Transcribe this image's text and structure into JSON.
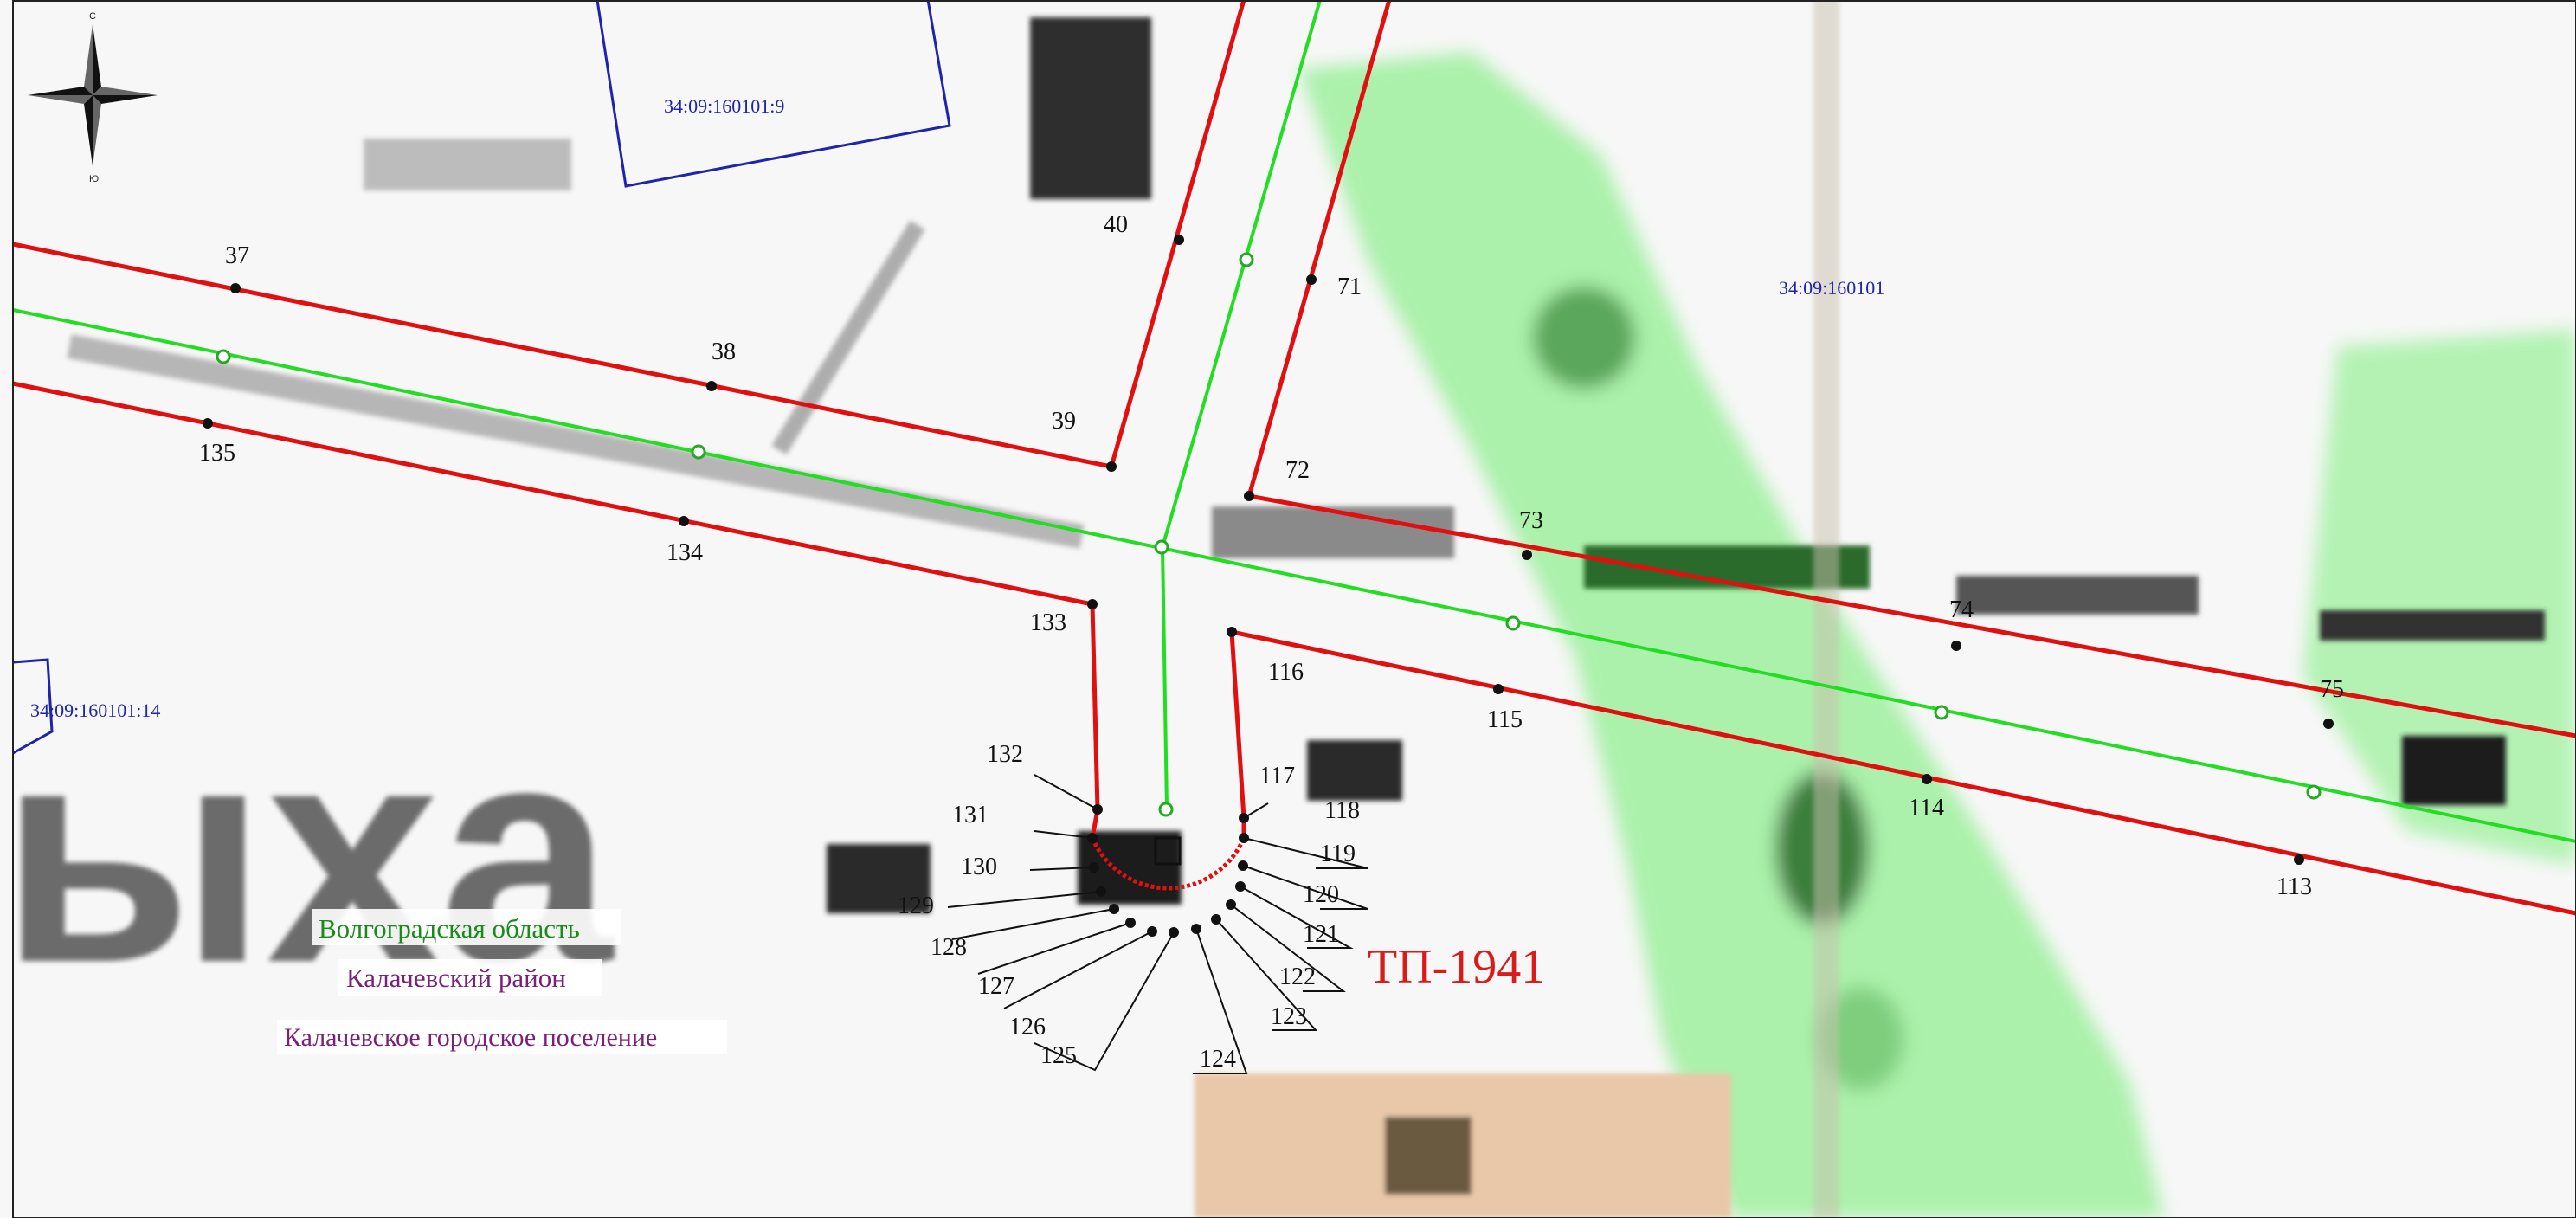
{
  "compass": {
    "north": "С",
    "south": "Ю"
  },
  "parcels": {
    "parcel_9": "34:09:160101:9",
    "quarter": "34:09:160101",
    "parcel_14": "34:09:160101:14"
  },
  "admin_labels": {
    "region": "Волгоградская область",
    "district": "Калачевский район",
    "settlement": "Калачевское городское поселение"
  },
  "object_label": "ТП-1941",
  "point_numbers": {
    "p37": "37",
    "p38": "38",
    "p39": "39",
    "p40": "40",
    "p71": "71",
    "p72": "72",
    "p73": "73",
    "p74": "74",
    "p75": "75",
    "p113": "113",
    "p114": "114",
    "p115": "115",
    "p116": "116",
    "p117": "117",
    "p118": "118",
    "p119": "119",
    "p120": "120",
    "p121": "121",
    "p122": "122",
    "p123": "123",
    "p124": "124",
    "p125": "125",
    "p126": "126",
    "p127": "127",
    "p128": "128",
    "p129": "129",
    "p130": "130",
    "p131": "131",
    "p132": "132",
    "p133": "133",
    "p134": "134",
    "p135": "135"
  },
  "colors": {
    "boundary": "#e01010",
    "axis": "#22dd22",
    "cadastral": "#1f24a8",
    "vegetation": "#8ee88e"
  },
  "icons": [
    "compass-rose-icon"
  ]
}
